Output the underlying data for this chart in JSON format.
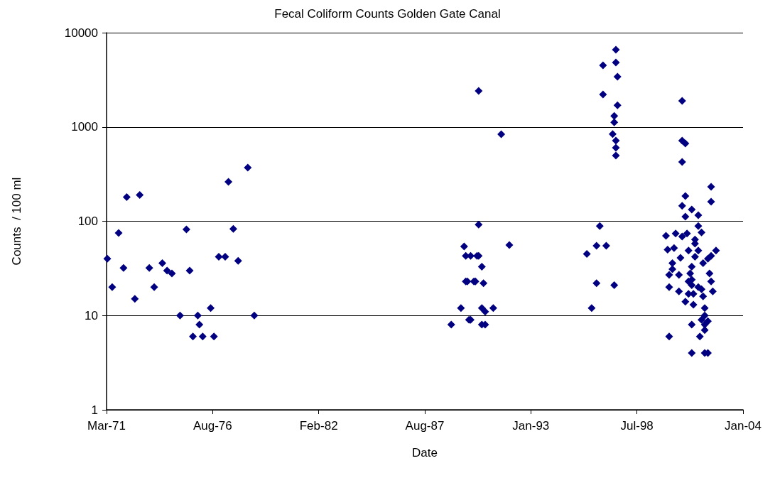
{
  "chart_data": {
    "type": "scatter",
    "title": "Fecal Coliform Counts Golden Gate Canal",
    "xlabel": "Date",
    "ylabel": "Counts  / 100 ml",
    "log": "y",
    "grid": "y",
    "marker": "diamond",
    "xlim": [
      "1971-03-01",
      "2004-01-07"
    ],
    "xticks": [
      {
        "value": "1971-03-01",
        "label": "Mar-71"
      },
      {
        "value": "1976-08-21",
        "label": "Aug-76"
      },
      {
        "value": "1982-02-11",
        "label": "Feb-82"
      },
      {
        "value": "1987-08-04",
        "label": "Aug-87"
      },
      {
        "value": "1993-01-24",
        "label": "Jan-93"
      },
      {
        "value": "1998-07-17",
        "label": "Jul-98"
      },
      {
        "value": "2004-01-07",
        "label": "Jan-04"
      }
    ],
    "ylim": [
      1,
      10000
    ],
    "yticks": [
      1,
      10,
      100,
      1000,
      10000
    ],
    "series": [
      {
        "color": "#000080",
        "x": [
          "1971-03",
          "1971-06",
          "1971-10",
          "1972-01",
          "1972-03",
          "1972-08",
          "1972-11",
          "1973-05",
          "1973-08",
          "1974-01",
          "1974-04",
          "1974-07",
          "1974-12",
          "1975-04",
          "1975-06",
          "1975-08",
          "1975-11",
          "1975-12",
          "1976-02",
          "1976-07",
          "1976-09",
          "1976-12",
          "1977-04",
          "1977-06",
          "1977-09",
          "1977-12",
          "1978-06",
          "1978-10",
          "1990-05",
          "1991-07",
          "1990-05",
          "1989-08",
          "1991-12",
          "1989-09",
          "1989-12",
          "1990-04",
          "1990-05",
          "1990-07",
          "1989-09",
          "1989-10",
          "1990-02",
          "1990-03",
          "1990-08",
          "1989-06",
          "1990-07",
          "1990-09",
          "1991-02",
          "1989-11",
          "1989-12",
          "1988-12",
          "1990-07",
          "1990-09",
          "1997-06",
          "1996-10",
          "1997-06",
          "1997-07",
          "1996-10",
          "1997-07",
          "1997-05",
          "1997-05",
          "1997-04",
          "1997-06",
          "1997-06",
          "1997-06",
          "1996-08",
          "1996-06",
          "1996-12",
          "1995-12",
          "1996-06",
          "1997-05",
          "1996-03",
          "2000-11",
          "2000-11",
          "2001-01",
          "2000-11",
          "2002-05",
          "2001-01",
          "2002-05",
          "2000-11",
          "2001-05",
          "2001-01",
          "2001-09",
          "2001-09",
          "2001-11",
          "2000-01",
          "2000-07",
          "2000-11",
          "2001-02",
          "2001-07",
          "2001-07",
          "2000-02",
          "2000-06",
          "2001-03",
          "2001-09",
          "2002-08",
          "2002-05",
          "2002-03",
          "2000-10",
          "2001-07",
          "2000-05",
          "2001-12",
          "2001-05",
          "2000-05",
          "2002-04",
          "2000-03",
          "2000-09",
          "2001-04",
          "2001-05",
          "2001-03",
          "2002-05",
          "2001-05",
          "2000-03",
          "2001-09",
          "2000-09",
          "2002-06",
          "2001-11",
          "2001-03",
          "2001-06",
          "2001-12",
          "2001-01",
          "2001-06",
          "2002-01",
          "2002-01",
          "2001-11",
          "2002-03",
          "2001-05",
          "2002-01",
          "2000-03",
          "2001-10",
          "2002-01",
          "2001-05",
          "2002-01",
          "2002-03"
        ],
        "values": [
          40,
          20,
          75,
          32,
          180,
          15,
          190,
          32,
          20,
          36,
          30,
          28,
          10,
          82,
          30,
          6,
          10,
          8,
          6,
          12,
          6,
          42,
          42,
          262,
          83,
          38,
          370,
          10,
          2410,
          837,
          92,
          54,
          56,
          43,
          43,
          43,
          43,
          33,
          23,
          23,
          23,
          23,
          22,
          12,
          12,
          11,
          12,
          9,
          9,
          8,
          8,
          8,
          6590,
          4500,
          4830,
          3410,
          2210,
          1700,
          1310,
          1120,
          840,
          716,
          602,
          497,
          89,
          55,
          55,
          45,
          22,
          21,
          12,
          1890,
          716,
          668,
          426,
          232,
          185,
          161,
          146,
          133,
          112,
          116,
          89,
          76,
          70,
          74,
          69,
          74,
          64,
          58,
          50,
          52,
          49,
          49,
          49,
          43,
          40,
          41,
          42,
          36,
          36,
          33,
          31,
          28,
          27,
          27,
          28,
          24,
          23,
          23,
          21,
          20,
          20,
          18,
          18,
          19,
          17,
          17,
          16,
          14,
          13,
          12,
          10,
          9,
          8.7,
          8,
          8,
          6,
          6,
          7,
          4,
          4,
          4
        ]
      }
    ]
  }
}
